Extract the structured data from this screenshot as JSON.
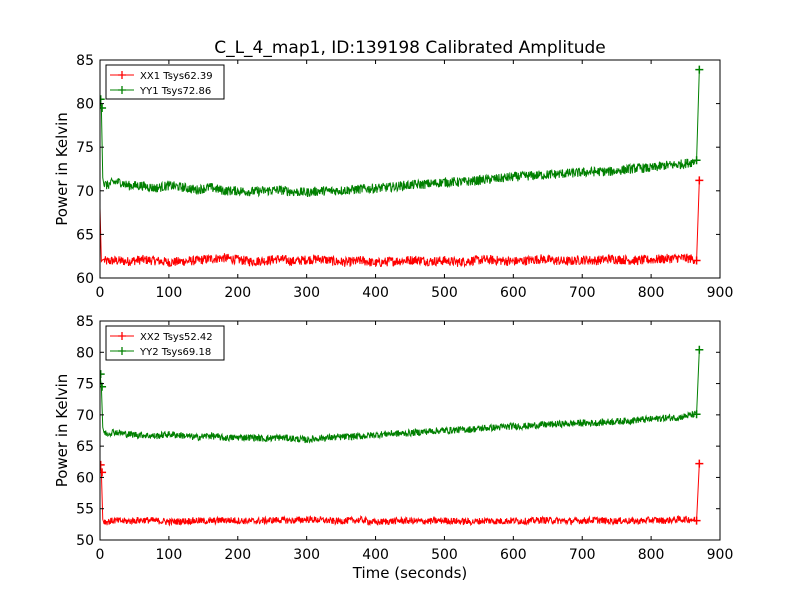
{
  "figure": {
    "title": "C_L_4_map1, ID:139198 Calibrated Amplitude"
  },
  "chart_data": [
    {
      "type": "line",
      "title": "C_L_4_map1, ID:139198 Calibrated Amplitude",
      "xlabel": "",
      "ylabel": "Power in Kelvin",
      "xlim": [
        0,
        900
      ],
      "ylim": [
        60,
        85
      ],
      "xticks": [
        "0",
        "100",
        "200",
        "300",
        "400",
        "500",
        "600",
        "700",
        "800",
        "900"
      ],
      "yticks": [
        "60",
        "65",
        "70",
        "75",
        "80",
        "85"
      ],
      "grid": false,
      "legend_position": "top-left",
      "series": [
        {
          "name": "XX1 Tsys62.39",
          "color": "#ff0000",
          "x": [
            0,
            2,
            4,
            6,
            10,
            20,
            40,
            60,
            80,
            100,
            120,
            140,
            160,
            180,
            200,
            220,
            240,
            260,
            280,
            300,
            320,
            340,
            360,
            380,
            400,
            420,
            440,
            460,
            480,
            500,
            520,
            540,
            560,
            580,
            600,
            620,
            640,
            660,
            680,
            700,
            720,
            740,
            760,
            780,
            800,
            820,
            840,
            860,
            866,
            870
          ],
          "y": [
            68.0,
            61.9,
            62.1,
            62.0,
            61.9,
            62.0,
            61.9,
            62.1,
            62.0,
            61.8,
            61.9,
            62.0,
            62.2,
            62.3,
            62.1,
            61.9,
            62.0,
            62.2,
            61.9,
            62.1,
            62.2,
            61.9,
            61.8,
            62.0,
            61.7,
            61.9,
            62.0,
            62.1,
            61.9,
            62.0,
            61.8,
            62.0,
            62.1,
            62.0,
            61.9,
            62.0,
            62.2,
            62.0,
            61.9,
            62.1,
            62.0,
            62.2,
            62.1,
            62.0,
            62.1,
            62.2,
            62.3,
            62.2,
            62.0,
            71.2
          ],
          "markers": [
            [
              866,
              62.0
            ],
            [
              870,
              71.2
            ]
          ]
        },
        {
          "name": "YY1 Tsys72.86",
          "color": "#008000",
          "x": [
            0,
            2,
            4,
            6,
            10,
            20,
            30,
            40,
            60,
            80,
            100,
            120,
            140,
            160,
            180,
            200,
            220,
            240,
            260,
            280,
            300,
            320,
            340,
            360,
            380,
            400,
            420,
            440,
            460,
            480,
            500,
            520,
            540,
            560,
            580,
            600,
            620,
            640,
            660,
            680,
            700,
            720,
            740,
            760,
            780,
            800,
            820,
            840,
            860,
            866,
            870
          ],
          "y": [
            80.5,
            79.5,
            71.5,
            70.8,
            70.6,
            71.0,
            71.0,
            70.6,
            70.6,
            70.3,
            70.6,
            70.4,
            70.1,
            70.4,
            70.0,
            70.0,
            69.9,
            70.0,
            70.1,
            69.9,
            69.8,
            70.0,
            70.0,
            70.1,
            70.2,
            70.3,
            70.4,
            70.6,
            70.7,
            70.8,
            71.0,
            71.0,
            71.1,
            71.3,
            71.4,
            71.6,
            71.7,
            71.8,
            71.9,
            72.0,
            72.1,
            72.2,
            72.2,
            72.4,
            72.6,
            72.6,
            72.9,
            73.0,
            73.3,
            73.5,
            83.9
          ],
          "markers": [
            [
              1,
              80.5
            ],
            [
              3,
              79.5
            ],
            [
              866,
              73.5
            ],
            [
              870,
              83.9
            ]
          ]
        }
      ]
    },
    {
      "type": "line",
      "title": "",
      "xlabel": "Time (seconds)",
      "ylabel": "Power in Kelvin",
      "xlim": [
        0,
        900
      ],
      "ylim": [
        50,
        85
      ],
      "xticks": [
        "0",
        "100",
        "200",
        "300",
        "400",
        "500",
        "600",
        "700",
        "800",
        "900"
      ],
      "yticks": [
        "50",
        "55",
        "60",
        "65",
        "70",
        "75",
        "80",
        "85"
      ],
      "grid": false,
      "legend_position": "top-left",
      "series": [
        {
          "name": "XX2 Tsys52.42",
          "color": "#ff0000",
          "x": [
            0,
            2,
            4,
            6,
            10,
            20,
            40,
            60,
            80,
            100,
            120,
            140,
            160,
            180,
            200,
            220,
            240,
            260,
            280,
            300,
            320,
            340,
            360,
            380,
            400,
            420,
            440,
            460,
            480,
            500,
            520,
            540,
            560,
            580,
            600,
            620,
            640,
            660,
            680,
            700,
            720,
            740,
            760,
            780,
            800,
            820,
            840,
            860,
            866,
            870
          ],
          "y": [
            62.0,
            60.8,
            53.3,
            53.0,
            52.9,
            53.1,
            53.0,
            53.2,
            53.1,
            52.9,
            53.0,
            53.1,
            53.0,
            53.2,
            53.1,
            53.0,
            53.1,
            53.2,
            53.1,
            53.3,
            53.2,
            53.0,
            53.1,
            53.2,
            52.8,
            53.0,
            53.1,
            53.0,
            53.0,
            53.1,
            53.0,
            52.9,
            53.1,
            53.0,
            53.1,
            53.0,
            53.2,
            53.1,
            53.0,
            53.1,
            53.2,
            53.0,
            53.1,
            53.0,
            53.2,
            53.1,
            53.3,
            53.3,
            53.1,
            62.2
          ],
          "markers": [
            [
              1,
              62.0
            ],
            [
              3,
              60.8
            ],
            [
              866,
              53.1
            ],
            [
              870,
              62.2
            ]
          ]
        },
        {
          "name": "YY2 Tsys69.18",
          "color": "#008000",
          "x": [
            0,
            2,
            4,
            6,
            10,
            20,
            30,
            40,
            60,
            80,
            100,
            120,
            140,
            160,
            180,
            200,
            220,
            240,
            260,
            280,
            300,
            320,
            340,
            360,
            380,
            400,
            420,
            440,
            460,
            480,
            500,
            520,
            540,
            560,
            580,
            600,
            620,
            640,
            660,
            680,
            700,
            720,
            740,
            760,
            780,
            800,
            820,
            840,
            860,
            866,
            870
          ],
          "y": [
            76.5,
            74.5,
            68.0,
            67.2,
            67.0,
            67.3,
            67.1,
            66.9,
            66.8,
            66.6,
            66.9,
            66.7,
            66.4,
            66.7,
            66.3,
            66.4,
            66.4,
            66.2,
            66.4,
            66.2,
            66.0,
            66.3,
            66.4,
            66.5,
            66.6,
            66.8,
            67.0,
            67.0,
            67.2,
            67.4,
            67.5,
            67.6,
            67.7,
            67.9,
            68.0,
            68.2,
            68.2,
            68.4,
            68.5,
            68.6,
            68.7,
            68.7,
            68.9,
            69.0,
            69.2,
            69.3,
            69.5,
            69.6,
            70.0,
            70.1,
            80.4
          ],
          "markers": [
            [
              1,
              76.5
            ],
            [
              3,
              74.5
            ],
            [
              866,
              70.1
            ],
            [
              870,
              80.4
            ]
          ]
        }
      ]
    }
  ]
}
